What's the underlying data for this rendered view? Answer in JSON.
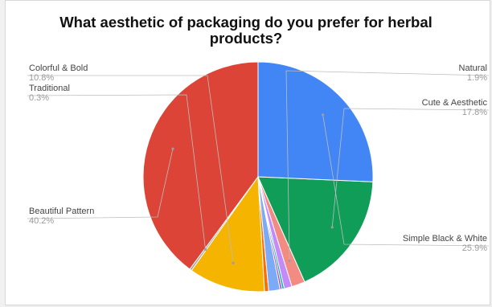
{
  "chart_data": {
    "type": "pie",
    "title_line1": "What aesthetic of packaging do you prefer for herbal",
    "title_line2": "products?",
    "slices": [
      {
        "label": "Beautiful Pattern",
        "value": 40.2,
        "pct_label": "40.2%",
        "color": "#db4437"
      },
      {
        "label": "Traditional",
        "value": 0.3,
        "pct_label": "0.3%",
        "color": "#9e9e9e"
      },
      {
        "label": "Colorful & Bold",
        "value": 10.8,
        "pct_label": "10.8%",
        "color": "#f4b400"
      },
      {
        "label": "",
        "value": 0.6,
        "pct_label": "",
        "color": "#ff6d00"
      },
      {
        "label": "",
        "value": 1.6,
        "pct_label": "",
        "color": "#7baaf7"
      },
      {
        "label": "",
        "value": 0.3,
        "pct_label": "",
        "color": "#ab47bc"
      },
      {
        "label": "",
        "value": 0.3,
        "pct_label": "",
        "color": "#00acc1"
      },
      {
        "label": "",
        "value": 1.1,
        "pct_label": "",
        "color": "#c58af9"
      },
      {
        "label": "Natural",
        "value": 1.9,
        "pct_label": "1.9%",
        "color": "#f28b82"
      },
      {
        "label": "Cute & Aesthetic",
        "value": 17.8,
        "pct_label": "17.8%",
        "color": "#0f9d58"
      },
      {
        "label": "Simple Black & White",
        "value": 25.9,
        "pct_label": "25.9%",
        "color": "#4285f4"
      }
    ],
    "legend": "none"
  }
}
